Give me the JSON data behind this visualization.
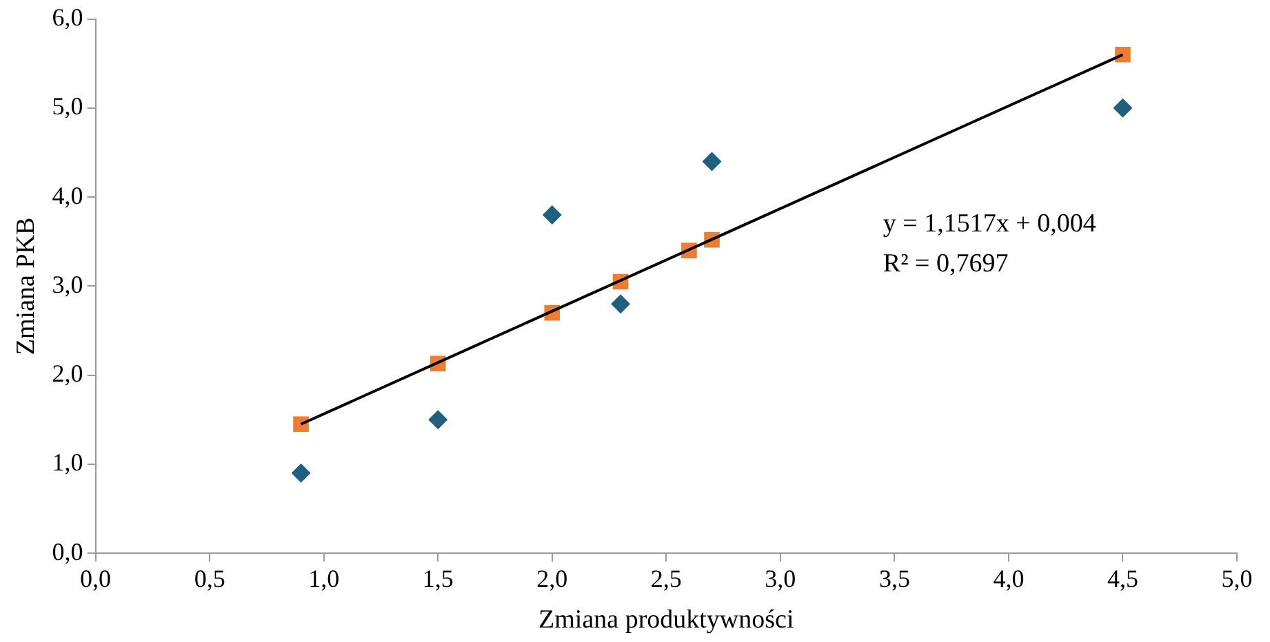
{
  "chart_data": {
    "type": "scatter",
    "xlabel": "Zmiana produktywności",
    "ylabel": "Zmiana PKB",
    "series": [
      {
        "type": "scatter",
        "color": "#1f5f80",
        "marker": "diamond",
        "x": [
          0.9,
          1.5,
          2.0,
          2.3,
          2.7,
          4.5
        ],
        "values": [
          0.9,
          1.5,
          3.8,
          2.8,
          4.4,
          5.0
        ]
      },
      {
        "type": "scatter",
        "color": "#ed7d31",
        "marker": "square",
        "x": [
          0.9,
          1.5,
          2.0,
          2.3,
          2.6,
          2.7,
          4.5
        ],
        "values": [
          1.45,
          2.13,
          2.7,
          3.05,
          3.4,
          3.52,
          5.6
        ]
      },
      {
        "type": "line",
        "color": "#000000",
        "marker": "none",
        "x": [
          0.9,
          4.5
        ],
        "values": [
          1.45,
          5.6
        ]
      }
    ],
    "annotations": [
      "y = 1,1517x + 0,004",
      "R² = 0,7697"
    ],
    "xlim": [
      0,
      5
    ],
    "ylim": [
      0,
      6
    ],
    "xticks": [
      {
        "value": 0,
        "label": "0,0"
      },
      {
        "value": 0.5,
        "label": "0,5"
      },
      {
        "value": 1,
        "label": "1,0"
      },
      {
        "value": 1.5,
        "label": "1,5"
      },
      {
        "value": 2,
        "label": "2,0"
      },
      {
        "value": 2.5,
        "label": "2,5"
      },
      {
        "value": 3,
        "label": "3,0"
      },
      {
        "value": 3.5,
        "label": "3,5"
      },
      {
        "value": 4,
        "label": "4,0"
      },
      {
        "value": 4.5,
        "label": "4,5"
      },
      {
        "value": 5,
        "label": "5,0"
      }
    ],
    "yticks": [
      {
        "value": 0,
        "label": "0,0"
      },
      {
        "value": 1,
        "label": "1,0"
      },
      {
        "value": 2,
        "label": "2,0"
      },
      {
        "value": 3,
        "label": "3,0"
      },
      {
        "value": 4,
        "label": "4,0"
      },
      {
        "value": 5,
        "label": "5,0"
      },
      {
        "value": 6,
        "label": "6,0"
      }
    ],
    "grid": false,
    "legend": false
  }
}
